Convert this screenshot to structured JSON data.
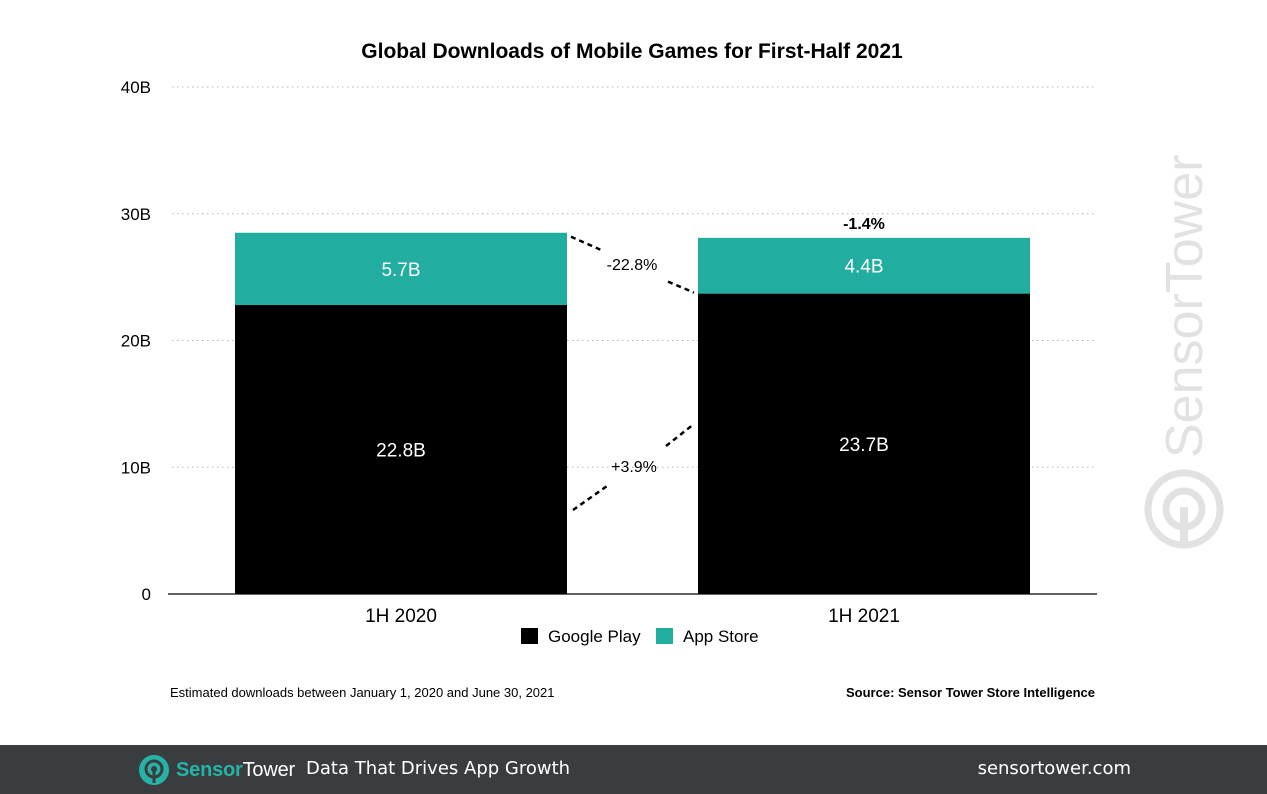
{
  "chart_data": {
    "type": "bar",
    "stacked": true,
    "title": "Global Downloads of Mobile Games for First-Half 2021",
    "categories": [
      "1H 2020",
      "1H 2021"
    ],
    "series": [
      {
        "name": "Google Play",
        "values": [
          22.8,
          23.7
        ],
        "labels": [
          "22.8B",
          "23.7B"
        ],
        "color": "#000000"
      },
      {
        "name": "App Store",
        "values": [
          5.7,
          4.4
        ],
        "labels": [
          "5.7B",
          "4.4B"
        ],
        "color": "#22ada1"
      }
    ],
    "yticks": [
      {
        "value": 0,
        "label": "0"
      },
      {
        "value": 10,
        "label": "10B"
      },
      {
        "value": 20,
        "label": "20B"
      },
      {
        "value": 30,
        "label": "30B"
      },
      {
        "value": 40,
        "label": "40B"
      }
    ],
    "ylim": [
      0,
      40
    ],
    "grid": true,
    "legend_position": "bottom-center",
    "annotations": {
      "total_change": "-1.4%",
      "app_store_change": "-22.8%",
      "google_play_change": "+3.9%"
    }
  },
  "notes": {
    "left": "Estimated downloads between January 1, 2020 and June 30, 2021",
    "source": "Source: Sensor Tower Store Intelligence"
  },
  "watermark": "SensorTower",
  "footer": {
    "brand_bold": "Sensor",
    "brand_light": "Tower",
    "tagline": "Data That Drives App Growth",
    "site": "sensortower.com"
  }
}
